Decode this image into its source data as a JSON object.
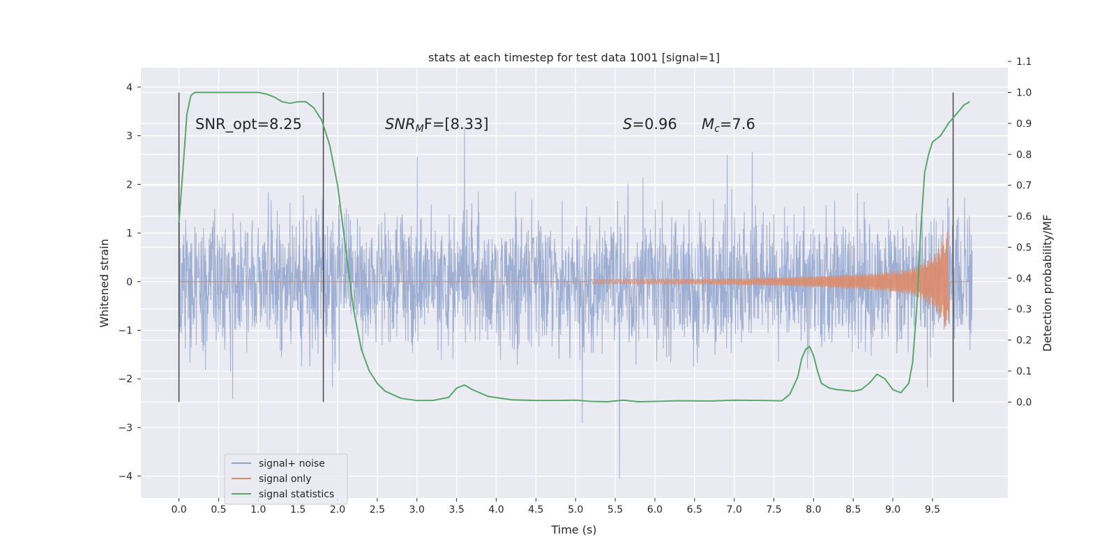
{
  "chart_data": {
    "type": "line",
    "title": "stats at each timestep for test data 1001 [signal=1]",
    "xlabel": "Time (s)",
    "ylabel": "Whitened strain",
    "y2label": "Detection probability/MF",
    "xlim": [
      -0.48,
      10.45
    ],
    "ylim": [
      -4.45,
      4.4
    ],
    "y2lim": [
      -0.31,
      1.08
    ],
    "x_ticks": [
      "0.0",
      "0.5",
      "1.0",
      "1.5",
      "2.0",
      "2.5",
      "3.0",
      "3.5",
      "4.0",
      "4.5",
      "5.0",
      "5.5",
      "6.0",
      "6.5",
      "7.0",
      "7.5",
      "8.0",
      "8.5",
      "9.0",
      "9.5"
    ],
    "y_ticks": [
      "4",
      "3",
      "2",
      "1",
      "0",
      "−1",
      "−2",
      "−3",
      "−4"
    ],
    "y2_ticks": [
      "1.1",
      "1.0",
      "0.9",
      "0.8",
      "0.7",
      "0.6",
      "0.5",
      "0.4",
      "0.3",
      "0.2",
      "0.1",
      "0.0"
    ],
    "grid": true,
    "legend_position": "lower-left",
    "vertical_markers": [
      0.0,
      1.82,
      9.76
    ],
    "annotations": {
      "snr_opt": "SNR_opt=8.25",
      "snr_mf_base": "SNR",
      "snr_mf_sub": "M",
      "snr_mf_tail": "F=[8.33]",
      "s_letter": "S",
      "s_value": "=0.96",
      "mc_base": "M",
      "mc_sub": "c",
      "mc_value": "=7.6"
    },
    "series": [
      {
        "name": "signal+ noise",
        "axis": "left",
        "kind": "noise",
        "x_range": [
          0.0,
          10.0
        ],
        "color": "#8fa3cc",
        "y_range": [
          -4.05,
          4.0
        ]
      },
      {
        "name": "signal only",
        "axis": "left",
        "kind": "chirp",
        "x_range": [
          5.2,
          9.7
        ],
        "color": "#dd8c6a",
        "y_range": [
          -1.1,
          1.1
        ]
      },
      {
        "name": "signal statistics",
        "axis": "right",
        "color": "#55a868",
        "x": [
          0.0,
          0.05,
          0.1,
          0.15,
          0.2,
          0.3,
          0.5,
          0.7,
          0.9,
          1.0,
          1.1,
          1.2,
          1.3,
          1.4,
          1.5,
          1.6,
          1.7,
          1.8,
          1.9,
          2.0,
          2.05,
          2.1,
          2.15,
          2.2,
          2.3,
          2.4,
          2.5,
          2.6,
          2.8,
          3.0,
          3.2,
          3.4,
          3.5,
          3.6,
          3.7,
          3.9,
          4.2,
          4.5,
          4.8,
          5.0,
          5.2,
          5.4,
          5.6,
          5.8,
          6.0,
          6.3,
          6.7,
          7.0,
          7.3,
          7.6,
          7.7,
          7.8,
          7.85,
          7.9,
          7.95,
          8.0,
          8.05,
          8.1,
          8.2,
          8.3,
          8.5,
          8.6,
          8.7,
          8.8,
          8.9,
          9.0,
          9.1,
          9.2,
          9.25,
          9.3,
          9.35,
          9.4,
          9.45,
          9.5,
          9.6,
          9.7,
          9.8,
          9.9,
          9.97
        ],
        "values": [
          0.58,
          0.75,
          0.93,
          0.99,
          1.0,
          1.0,
          1.0,
          1.0,
          1.0,
          1.0,
          0.995,
          0.985,
          0.97,
          0.965,
          0.97,
          0.97,
          0.95,
          0.91,
          0.83,
          0.7,
          0.6,
          0.5,
          0.4,
          0.3,
          0.17,
          0.1,
          0.06,
          0.035,
          0.012,
          0.005,
          0.005,
          0.015,
          0.045,
          0.055,
          0.04,
          0.018,
          0.007,
          0.005,
          0.005,
          0.006,
          0.002,
          0.001,
          0.006,
          0.001,
          0.002,
          0.004,
          0.003,
          0.006,
          0.005,
          0.004,
          0.025,
          0.08,
          0.14,
          0.17,
          0.18,
          0.15,
          0.1,
          0.06,
          0.045,
          0.04,
          0.035,
          0.04,
          0.06,
          0.09,
          0.075,
          0.04,
          0.03,
          0.06,
          0.13,
          0.3,
          0.55,
          0.74,
          0.8,
          0.84,
          0.86,
          0.9,
          0.93,
          0.96,
          0.97
        ]
      }
    ]
  }
}
